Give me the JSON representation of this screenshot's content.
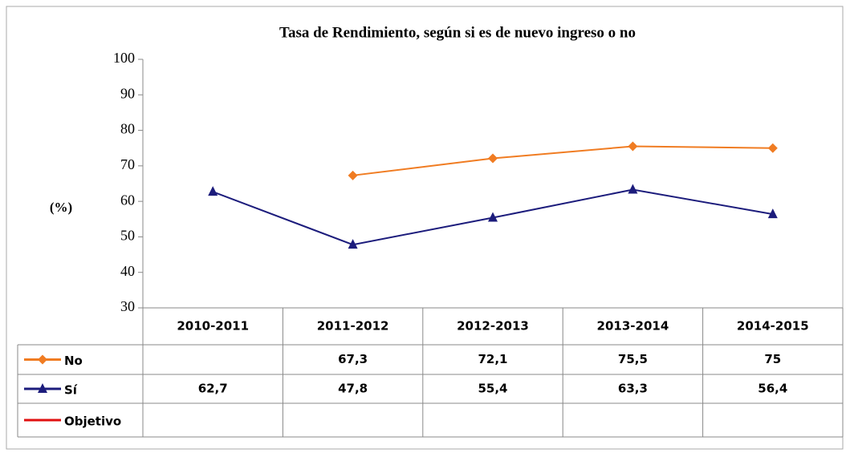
{
  "chart_data": {
    "type": "line",
    "title": "Tasa de Rendimiento, según si es de nuevo ingreso o no",
    "y_label": "(%)",
    "categories": [
      "2010-2011",
      "2011-2012",
      "2012-2013",
      "2013-2014",
      "2014-2015"
    ],
    "series": [
      {
        "name": "No",
        "color": "#f07c22",
        "marker": "diamond",
        "values": [
          null,
          67.3,
          72.1,
          75.5,
          75
        ],
        "value_labels": [
          null,
          "67,3",
          "72,1",
          "75,5",
          "75"
        ]
      },
      {
        "name": "Sí",
        "color": "#1c1c7c",
        "marker": "triangle",
        "values": [
          62.7,
          47.8,
          55.4,
          63.3,
          56.4
        ],
        "value_labels": [
          "62,7",
          "47,8",
          "55,4",
          "63,3",
          "56,4"
        ]
      },
      {
        "name": "Objetivo",
        "color": "#e01010",
        "marker": "none",
        "values": [
          null,
          null,
          null,
          null,
          null
        ]
      }
    ],
    "ylim": [
      30,
      100
    ],
    "yticks": [
      30,
      40,
      50,
      60,
      70,
      80,
      90,
      100
    ],
    "grid": false
  }
}
